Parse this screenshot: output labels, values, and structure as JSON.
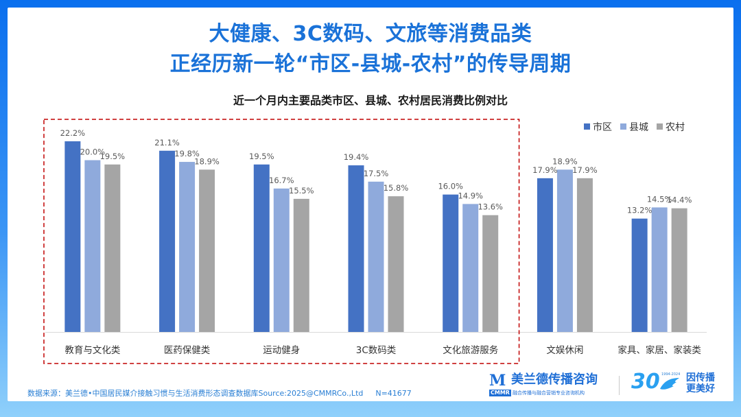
{
  "header": {
    "title_line1": "大健康、3C数码、文旅等消费品类",
    "title_line2": "正经历新一轮“市区-县城-农村”的传导周期"
  },
  "chart_data": {
    "type": "bar",
    "title": "近一个月内主要品类市区、县城、农村居民消费比例对比",
    "xlabel": "",
    "ylabel": "",
    "ylim": [
      0,
      25
    ],
    "grid": false,
    "legend_position": "top-right",
    "value_suffix": "%",
    "categories": [
      "教育与文化类",
      "医药保健类",
      "运动健身",
      "3C数码类",
      "文化旅游服务",
      "文娱休闲",
      "家具、家居、家装类"
    ],
    "series": [
      {
        "name": "市区",
        "color": "#4472c4",
        "values": [
          22.2,
          21.1,
          19.5,
          19.4,
          16.0,
          17.9,
          13.2
        ]
      },
      {
        "name": "县城",
        "color": "#8faadc",
        "values": [
          20.0,
          19.8,
          16.7,
          17.5,
          14.9,
          18.9,
          14.5
        ]
      },
      {
        "name": "农村",
        "color": "#a5a5a5",
        "values": [
          19.5,
          18.9,
          15.5,
          15.8,
          13.6,
          17.9,
          14.4
        ]
      }
    ],
    "highlight": {
      "from_category": "教育与文化类",
      "to_category": "文化旅游服务",
      "style": "dashed",
      "color": "#c00000"
    }
  },
  "footer": {
    "source": "数据来源：美兰德•中国居民媒介接触习惯与生活消费形态调查数据库Source:2025@CMMRCo.,Ltd",
    "sample": "N=41677"
  },
  "brand": {
    "logo_mark": "M",
    "name": "美兰德传播咨询",
    "abbr": "CMMR",
    "tagline": "融合传播与融合营销专业咨询机构",
    "anniversary": "30",
    "years": "1994-2024",
    "slogan_line1": "因传播",
    "slogan_line2": "更美好"
  }
}
